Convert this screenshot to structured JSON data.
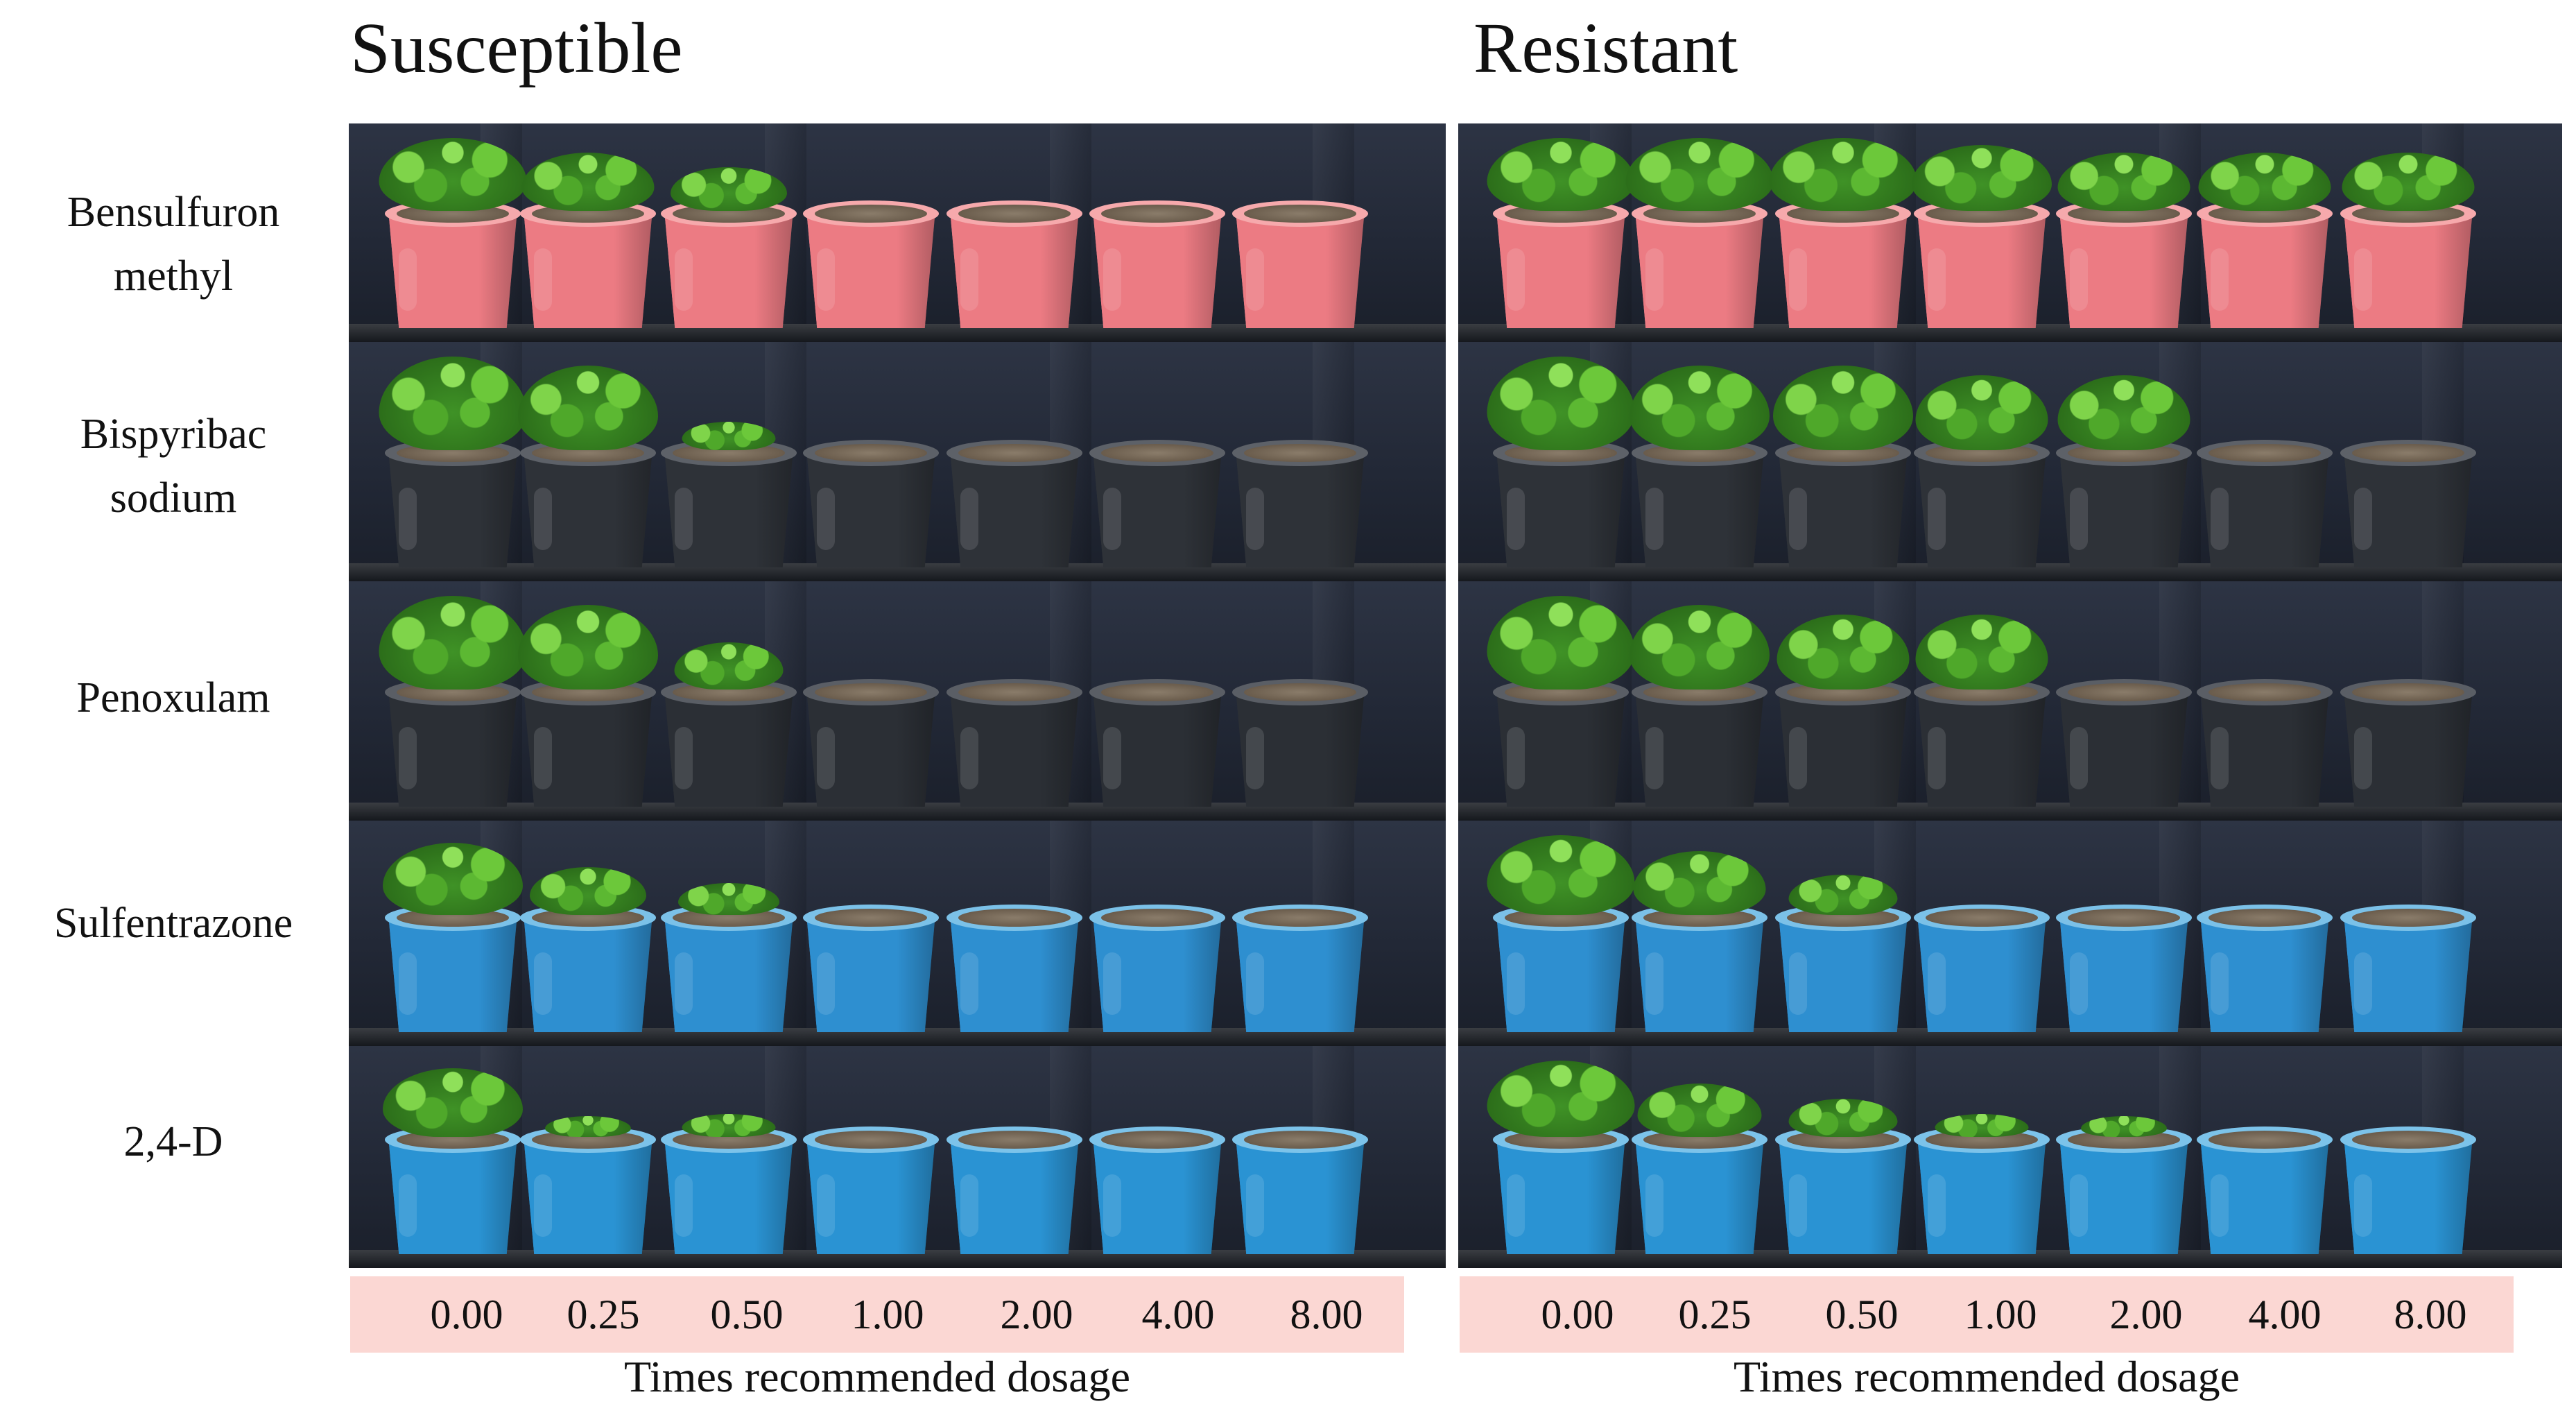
{
  "figure": {
    "columns": [
      {
        "title": "Susceptible",
        "axis_caption": "Times recommended dosage"
      },
      {
        "title": "Resistant",
        "axis_caption": "Times recommended dosage"
      }
    ],
    "rows": [
      {
        "label_line1": "Bensulfuron",
        "label_line2": "methyl",
        "pot_color": "#ec7b83",
        "rim_color": "#f6a9ac"
      },
      {
        "label_line1": "Bispyribac",
        "label_line2": "sodium",
        "pot_color": "#2e3238",
        "rim_color": "#5d6168"
      },
      {
        "label_line1": "Penoxulam",
        "label_line2": "",
        "pot_color": "#2b2f35",
        "rim_color": "#5a5e65"
      },
      {
        "label_line1": "Sulfentrazone",
        "label_line2": "",
        "pot_color": "#2e8fd0",
        "rim_color": "#7bc1e8"
      },
      {
        "label_line1": "2,4-D",
        "label_line2": "",
        "pot_color": "#2a93d3",
        "rim_color": "#7cc3ea"
      }
    ],
    "doses": [
      "0.00",
      "0.25",
      "0.50",
      "1.00",
      "2.00",
      "4.00",
      "8.00"
    ],
    "growth": {
      "susceptible": [
        [
          1.0,
          0.8,
          0.6,
          0.0,
          0.0,
          0.0,
          0.0
        ],
        [
          1.0,
          0.9,
          0.3,
          0.0,
          0.0,
          0.0,
          0.0
        ],
        [
          1.0,
          0.9,
          0.5,
          0.0,
          0.0,
          0.0,
          0.0
        ],
        [
          0.9,
          0.6,
          0.4,
          0.0,
          0.0,
          0.0,
          0.0
        ],
        [
          0.9,
          0.2,
          0.3,
          0.0,
          0.0,
          0.0,
          0.0
        ]
      ],
      "resistant": [
        [
          1.0,
          1.0,
          1.0,
          0.9,
          0.8,
          0.8,
          0.8
        ],
        [
          1.0,
          0.9,
          0.9,
          0.8,
          0.8,
          0.0,
          0.0
        ],
        [
          1.0,
          0.9,
          0.8,
          0.8,
          0.0,
          0.0,
          0.0
        ],
        [
          1.0,
          0.8,
          0.5,
          0.0,
          0.0,
          0.0,
          0.0
        ],
        [
          1.0,
          0.7,
          0.5,
          0.3,
          0.2,
          0.0,
          0.0
        ]
      ]
    },
    "colors": {
      "dose_bar": "#fbd7d3",
      "backdrop": "#1f2430"
    }
  }
}
